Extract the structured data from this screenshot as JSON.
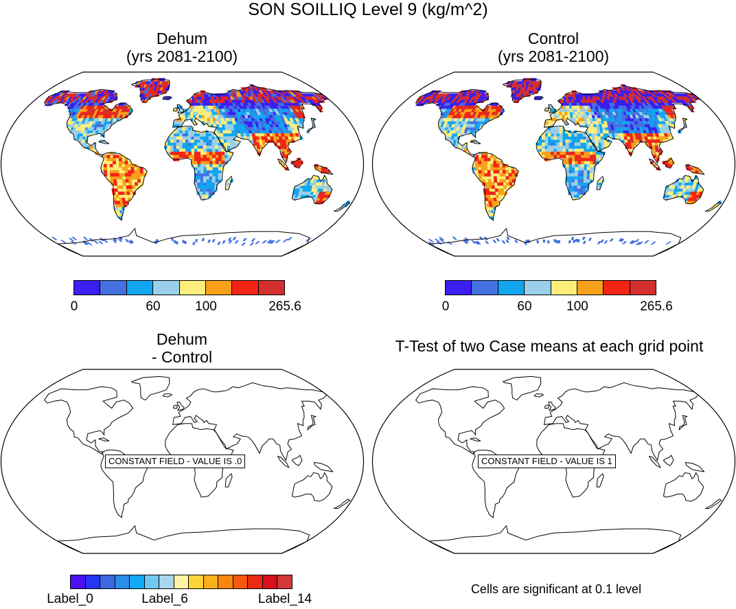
{
  "title": "SON SOILLIQ Level 9 (kg/m^2)",
  "panels": [
    {
      "id": "dehum",
      "title_line1": "Dehum",
      "title_line2": "(yrs 2081-2100)"
    },
    {
      "id": "control",
      "title_line1": "Control",
      "title_line2": "(yrs 2081-2100)"
    },
    {
      "id": "difference",
      "title_line1": "Dehum",
      "title_line2": "- Control",
      "constant_field_label": "CONSTANT FIELD - VALUE IS .0"
    },
    {
      "id": "ttest",
      "title_line1": "T-Test of two Case means at each grid point",
      "constant_field_label": "CONSTANT FIELD - VALUE IS 1"
    }
  ],
  "colorbar_top": {
    "colors": [
      "#3b1ef0",
      "#4470e0",
      "#12a5f0",
      "#99cfe8",
      "#fbee7a",
      "#f7a11a",
      "#f22515",
      "#d32f2f"
    ],
    "labels": [
      "0",
      "60",
      "100",
      "265.6"
    ]
  },
  "colorbar_bottom": {
    "colors": [
      "#4b10f0",
      "#2835f0",
      "#3d68e0",
      "#2a8de8",
      "#12aaf2",
      "#72c8f0",
      "#a8d6ee",
      "#fdf5a3",
      "#fdd53a",
      "#fbaf1d",
      "#f7860f",
      "#f35a0f",
      "#ea2a12",
      "#d8101a",
      "#d23838"
    ],
    "labels": [
      "Label_0",
      "Label_6",
      "Label_14"
    ]
  },
  "significance_note": "Cells are significant at 0.1 level"
}
